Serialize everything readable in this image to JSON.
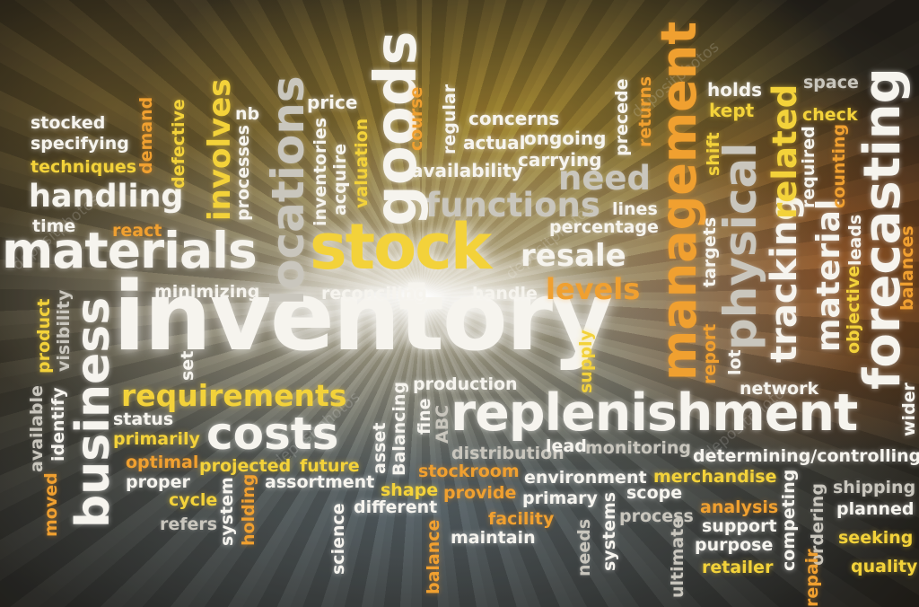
{
  "words": {
    "inventory": "inventory",
    "stock": "stock",
    "replenishment": "replenishment",
    "materials": "materials",
    "management": "management",
    "forecasting": "forecasting",
    "physical": "physical",
    "locations": "locations",
    "goods": "goods",
    "business": "business",
    "costs": "costs",
    "requirements": "requirements",
    "functions": "functions",
    "handling": "handling",
    "resale": "resale",
    "levels": "levels",
    "tracking": "tracking",
    "material": "material",
    "related": "related",
    "involves": "involves",
    "need": "need",
    "stocked": "stocked",
    "specifying": "specifying",
    "techniques": "techniques",
    "demand": "demand",
    "defective": "defective",
    "time": "time",
    "react": "react",
    "nb": "nb",
    "processes": "processes",
    "price": "price",
    "inventories": "inventories",
    "acquire": "acquire",
    "valuation": "valuation",
    "course": "course",
    "regular": "regular",
    "concerns": "concerns",
    "actual": "actual",
    "ongoing": "ongoing",
    "carrying": "carrying",
    "availability": "availability",
    "precede": "precede",
    "returns": "returns",
    "holds": "holds",
    "kept": "kept",
    "space": "space",
    "check": "check",
    "shift": "shift",
    "required": "required",
    "counting": "counting",
    "lines": "lines",
    "percentage": "percentage",
    "minimizing": "minimizing",
    "reconciling": "reconciling",
    "handle": "handle",
    "targets": "targets",
    "objective": "objective",
    "leads": "leads",
    "balances": "balances",
    "product": "product",
    "visibility": "visibility",
    "available": "available",
    "identify": "identify",
    "moved": "moved",
    "status": "status",
    "primarily": "primarily",
    "optimal": "optimal",
    "proper": "proper",
    "cycle": "cycle",
    "refers": "refers",
    "set": "set",
    "system": "system",
    "holding": "holding",
    "projected": "projected",
    "future": "future",
    "assortment": "assortment",
    "asset": "asset",
    "balancing": "Balancing",
    "fine": "fine",
    "abc": "ABC",
    "production": "production",
    "supply": "supply",
    "report": "report",
    "lot": "lot",
    "network": "network",
    "wider": "wider",
    "distribution": "distribution",
    "lead": "lead",
    "monitoring": "monitoring",
    "determining_controlling": "determining/controlling",
    "stockroom": "stockroom",
    "environment": "environment",
    "merchandise": "merchandise",
    "shape": "shape",
    "provide": "provide",
    "primary": "primary",
    "scope": "scope",
    "shipping": "shipping",
    "different": "different",
    "facility": "facility",
    "process": "process",
    "analysis": "analysis",
    "planned": "planned",
    "science": "science",
    "maintain": "maintain",
    "support": "support",
    "seeking": "seeking",
    "balance": "balance",
    "needs": "needs",
    "systems": "systems",
    "ultimate": "ultimate",
    "purpose": "purpose",
    "competing": "competing",
    "ordering": "ordering",
    "retailer": "retailer",
    "repair": "repair",
    "quality": "quality"
  },
  "watermark": {
    "text": "depositphotos"
  },
  "colors": {
    "white": "#f6f4ee",
    "yellow": "#f3d23a",
    "orange": "#f0a030",
    "gray": "#c9c6bd"
  }
}
